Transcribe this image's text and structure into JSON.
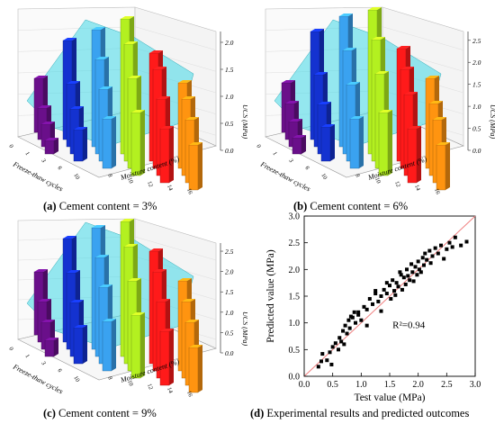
{
  "figure": {
    "captions": {
      "a": {
        "letter": "(a)",
        "text": " Cement content = 3%"
      },
      "b": {
        "letter": "(b)",
        "text": " Cement content = 6%"
      },
      "c": {
        "letter": "(c)",
        "text": " Cement content = 9%"
      },
      "d": {
        "letter": "(d)",
        "text": " Experimental results and predicted outcomes"
      }
    },
    "axis3d": {
      "z_label": "UCS (MPa)",
      "x_label": "Moisture content (%)",
      "y_label": "Freeze-thaw cycles"
    }
  },
  "chart_data": [
    {
      "type": "bar",
      "subtype": "3d-bar",
      "panel": "a",
      "zlabel": "UCS (MPa)",
      "xlabel": "Moisture content (%)",
      "ylabel": "Freeze-thaw cycles",
      "zticks": [
        "0.0",
        "0.5",
        "1.0",
        "1.5",
        "2.0"
      ],
      "zlim": [
        0,
        2.3
      ],
      "x_ticks": [
        "8",
        "10",
        "12",
        "14",
        "16"
      ],
      "y_ticks": [
        "0",
        "1",
        "3",
        "6",
        "10"
      ],
      "colors_by_moisture": [
        "#6a0f8a",
        "#1432d0",
        "#3aa2f0",
        "#b3f020",
        "#ff1a1a",
        "#ff9410"
      ],
      "surface_color": "#3fd7e6"
    },
    {
      "type": "bar",
      "subtype": "3d-bar",
      "panel": "b",
      "zlabel": "UCS (MPa)",
      "xlabel": "Moisture content (%)",
      "ylabel": "Freeze-thaw cycles",
      "zticks": [
        "0.0",
        "0.5",
        "1.0",
        "1.5",
        "2.0",
        "2.5"
      ],
      "zlim": [
        0,
        2.8
      ]
    },
    {
      "type": "bar",
      "subtype": "3d-bar",
      "panel": "c",
      "zlabel": "UCS (MPa)",
      "xlabel": "Moisture content (%)",
      "ylabel": "Freeze-thaw cycles",
      "zticks": [
        "0.0",
        "0.5",
        "1.0",
        "1.5",
        "2.0",
        "2.5"
      ],
      "zlim": [
        0,
        2.8
      ]
    },
    {
      "type": "scatter",
      "panel": "d",
      "xlabel": "Test value (MPa)",
      "ylabel": "Predicted value (MPa)",
      "xlim": [
        0.0,
        3.0
      ],
      "ylim": [
        0.0,
        3.0
      ],
      "xticks": [
        "0.0",
        "0.5",
        "1.0",
        "1.5",
        "2.0",
        "2.5",
        "3.0"
      ],
      "yticks": [
        "0.0",
        "0.5",
        "1.0",
        "1.5",
        "2.0",
        "2.5",
        "3.0"
      ],
      "annotation": "R²=0.94",
      "fit_line": {
        "x": [
          0.0,
          3.0
        ],
        "y": [
          0.0,
          3.0
        ],
        "color": "#f08080"
      },
      "points": [
        [
          0.25,
          0.18
        ],
        [
          0.3,
          0.28
        ],
        [
          0.32,
          0.42
        ],
        [
          0.4,
          0.3
        ],
        [
          0.45,
          0.45
        ],
        [
          0.48,
          0.22
        ],
        [
          0.5,
          0.55
        ],
        [
          0.55,
          0.62
        ],
        [
          0.6,
          0.5
        ],
        [
          0.62,
          0.72
        ],
        [
          0.65,
          0.65
        ],
        [
          0.68,
          0.85
        ],
        [
          0.7,
          0.6
        ],
        [
          0.72,
          0.95
        ],
        [
          0.75,
          0.8
        ],
        [
          0.78,
          1.05
        ],
        [
          0.8,
          0.9
        ],
        [
          0.85,
          1.1
        ],
        [
          0.88,
          1.2
        ],
        [
          0.9,
          1.0
        ],
        [
          0.95,
          1.15
        ],
        [
          1.0,
          1.05
        ],
        [
          1.05,
          1.3
        ],
        [
          1.1,
          1.25
        ],
        [
          1.15,
          1.45
        ],
        [
          1.2,
          1.35
        ],
        [
          1.25,
          1.55
        ],
        [
          1.3,
          1.4
        ],
        [
          1.35,
          1.5
        ],
        [
          1.4,
          1.62
        ],
        [
          1.45,
          1.55
        ],
        [
          1.5,
          1.7
        ],
        [
          1.52,
          1.45
        ],
        [
          1.55,
          1.8
        ],
        [
          1.58,
          1.6
        ],
        [
          1.6,
          1.52
        ],
        [
          1.62,
          1.75
        ],
        [
          1.65,
          1.68
        ],
        [
          1.7,
          1.9
        ],
        [
          1.72,
          1.62
        ],
        [
          1.75,
          1.85
        ],
        [
          1.78,
          1.72
        ],
        [
          1.8,
          2.0
        ],
        [
          1.82,
          1.88
        ],
        [
          1.85,
          1.8
        ],
        [
          1.88,
          2.1
        ],
        [
          1.9,
          1.95
        ],
        [
          1.92,
          1.78
        ],
        [
          1.95,
          2.05
        ],
        [
          1.98,
          1.9
        ],
        [
          2.0,
          2.15
        ],
        [
          2.02,
          2.0
        ],
        [
          2.05,
          1.95
        ],
        [
          2.08,
          2.22
        ],
        [
          2.1,
          2.08
        ],
        [
          2.12,
          2.3
        ],
        [
          2.15,
          2.18
        ],
        [
          2.2,
          2.35
        ],
        [
          2.22,
          2.12
        ],
        [
          2.25,
          2.25
        ],
        [
          2.3,
          2.4
        ],
        [
          2.35,
          2.3
        ],
        [
          2.4,
          2.45
        ],
        [
          2.45,
          2.2
        ],
        [
          2.5,
          2.38
        ],
        [
          2.55,
          2.5
        ],
        [
          2.6,
          2.42
        ],
        [
          2.65,
          2.6
        ],
        [
          2.75,
          2.45
        ],
        [
          2.85,
          2.52
        ],
        [
          1.1,
          0.95
        ],
        [
          0.95,
          1.2
        ],
        [
          1.35,
          1.22
        ],
        [
          1.45,
          1.75
        ],
        [
          0.82,
          1.12
        ],
        [
          1.25,
          1.6
        ],
        [
          1.68,
          1.95
        ]
      ]
    }
  ]
}
